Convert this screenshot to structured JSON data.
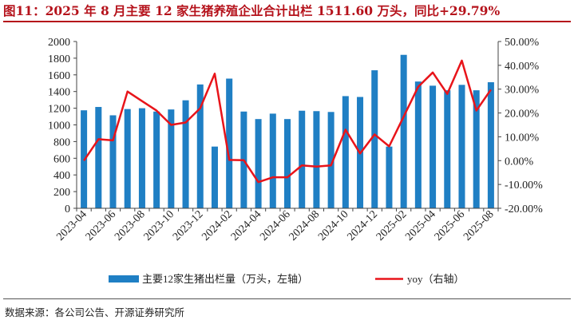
{
  "title": "图11：2025 年 8 月主要 12 家生猪养殖企业合计出栏 1511.60 万头，同比+29.79%",
  "source": "数据来源：各公司公告、开源证券研究所",
  "colors": {
    "bar": "#1f7fc4",
    "line": "#e8141a",
    "title": "#b5121b",
    "axis": "#444444"
  },
  "chart_data": {
    "type": "bar+line",
    "categories": [
      "2023-04",
      "2023-05",
      "2023-06",
      "2023-07",
      "2023-08",
      "2023-09",
      "2023-10",
      "2023-11",
      "2023-12",
      "2024-01",
      "2024-02",
      "2024-03",
      "2024-04",
      "2024-05",
      "2024-06",
      "2024-07",
      "2024-08",
      "2024-09",
      "2024-10",
      "2024-11",
      "2024-12",
      "2025-01",
      "2025-02",
      "2025-03",
      "2025-04",
      "2025-05",
      "2025-06",
      "2025-07",
      "2025-08"
    ],
    "x_tick_labels": [
      "2023-04",
      "2023-06",
      "2023-08",
      "2023-10",
      "2023-12",
      "2024-02",
      "2024-04",
      "2024-06",
      "2024-08",
      "2024-10",
      "2024-12",
      "2025-02",
      "2025-04",
      "2025-06",
      "2025-08"
    ],
    "series": [
      {
        "name": "主要12家生猪出栏量（万头，左轴）",
        "type": "bar",
        "axis": "left",
        "values": [
          1175,
          1215,
          1115,
          1190,
          1200,
          1160,
          1185,
          1295,
          1485,
          740,
          1555,
          1160,
          1070,
          1135,
          1070,
          1170,
          1165,
          1155,
          1345,
          1335,
          1655,
          740,
          1840,
          1520,
          1470,
          1415,
          1480,
          1415,
          1511.6
        ]
      },
      {
        "name": "yoy（右轴）",
        "type": "line",
        "axis": "right",
        "values": [
          0.0,
          9.0,
          8.5,
          29.0,
          25.0,
          21.0,
          15.0,
          16.0,
          22.0,
          36.5,
          0.3,
          0.2,
          -9.0,
          -7.0,
          -7.0,
          -2.0,
          -2.5,
          -2.0,
          13.0,
          3.0,
          11.0,
          6.0,
          18.5,
          31.0,
          37.0,
          28.0,
          42.0,
          21.0,
          29.79
        ]
      }
    ],
    "y_left": {
      "min": 0,
      "max": 2000,
      "step": 200,
      "ticks": [
        "0",
        "200",
        "400",
        "600",
        "800",
        "1000",
        "1200",
        "1400",
        "1600",
        "1800",
        "2000"
      ]
    },
    "y_right": {
      "min": -20,
      "max": 50,
      "step": 10,
      "ticks": [
        "-20.00%",
        "-10.00%",
        "0.00%",
        "10.00%",
        "20.00%",
        "30.00%",
        "40.00%",
        "50.00%"
      ]
    },
    "legend": {
      "position": "bottom",
      "items": [
        "主要12家生猪出栏量（万头，左轴）",
        "yoy（右轴）"
      ]
    }
  }
}
